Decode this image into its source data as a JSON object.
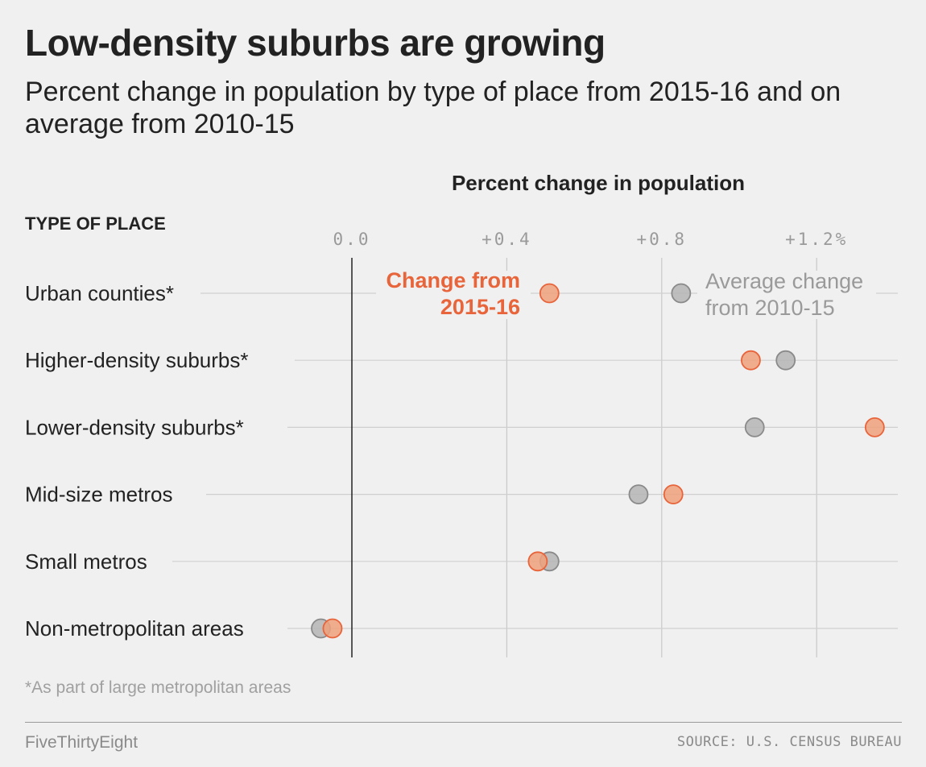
{
  "header": {
    "title": "Low-density suburbs are growing",
    "subtitle": "Percent change in population by type of place from 2015-16 and on average from 2010-15"
  },
  "chart_data": {
    "type": "scatter",
    "title": "Percent change in population",
    "row_header": "TYPE OF PLACE",
    "x_ticks": [
      {
        "value": 0.0,
        "label": "0.0"
      },
      {
        "value": 0.4,
        "label": "+0.4"
      },
      {
        "value": 0.8,
        "label": "+0.8"
      },
      {
        "value": 1.2,
        "label": "+1.2%"
      }
    ],
    "xlim": [
      -0.1,
      1.41
    ],
    "grid": true,
    "categories": [
      "Urban counties*",
      "Higher-density suburbs*",
      "Lower-density suburbs*",
      "Mid-size metros",
      "Small metros",
      "Non-metropolitan areas"
    ],
    "series": [
      {
        "name": "Average change from 2010-15",
        "color": "#b5b5b5",
        "stroke": "#8a8a8a",
        "values": [
          0.85,
          1.12,
          1.04,
          0.74,
          0.51,
          -0.08
        ]
      },
      {
        "name": "Change from 2015-16",
        "color": "#f0a17c",
        "stroke": "#e8643a",
        "values": [
          0.51,
          1.03,
          1.35,
          0.83,
          0.48,
          -0.05
        ]
      }
    ],
    "annotations": {
      "series2_label_lines": [
        "Change from",
        "2015-16"
      ],
      "series1_label_lines": [
        "Average change",
        "from 2010-15"
      ]
    }
  },
  "footer": {
    "footnote": "*As part of large metropolitan areas",
    "brand": "FiveThirtyEight",
    "source": "SOURCE: U.S. CENSUS BUREAU"
  }
}
